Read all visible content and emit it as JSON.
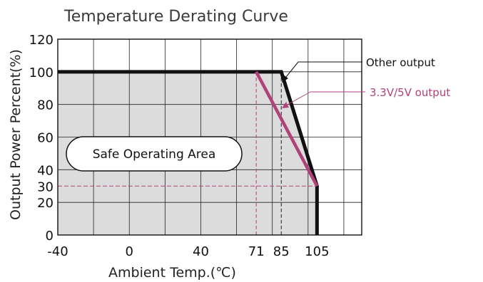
{
  "chart_data": {
    "type": "line",
    "title": "Temperature Derating Curve",
    "xlabel": "Ambient Temp.(℃)",
    "ylabel": "Output Power Percent(%)",
    "x_tick_labels": [
      "-40",
      "0",
      "40",
      "71",
      "85",
      "105"
    ],
    "y_tick_labels": [
      "0",
      "20",
      "30",
      "40",
      "60",
      "80",
      "100",
      "120"
    ],
    "xlim": [
      -40,
      130
    ],
    "ylim": [
      0,
      120
    ],
    "grid": true,
    "region_label": "Safe Operating Area",
    "series": [
      {
        "name": "Other output",
        "color": "#111111",
        "points": [
          [
            -40,
            100
          ],
          [
            85,
            100
          ],
          [
            105,
            30
          ],
          [
            105,
            0
          ]
        ]
      },
      {
        "name": "3.3V/5V output",
        "color": "#b0427a",
        "points": [
          [
            71,
            100
          ],
          [
            105,
            30
          ]
        ]
      }
    ],
    "reference_lines": {
      "x": [
        71,
        85
      ],
      "y": [
        30
      ]
    }
  },
  "colors": {
    "safe_area_fill": "#dcdcdc",
    "grid": "#222222",
    "accent": "#b0427a"
  }
}
